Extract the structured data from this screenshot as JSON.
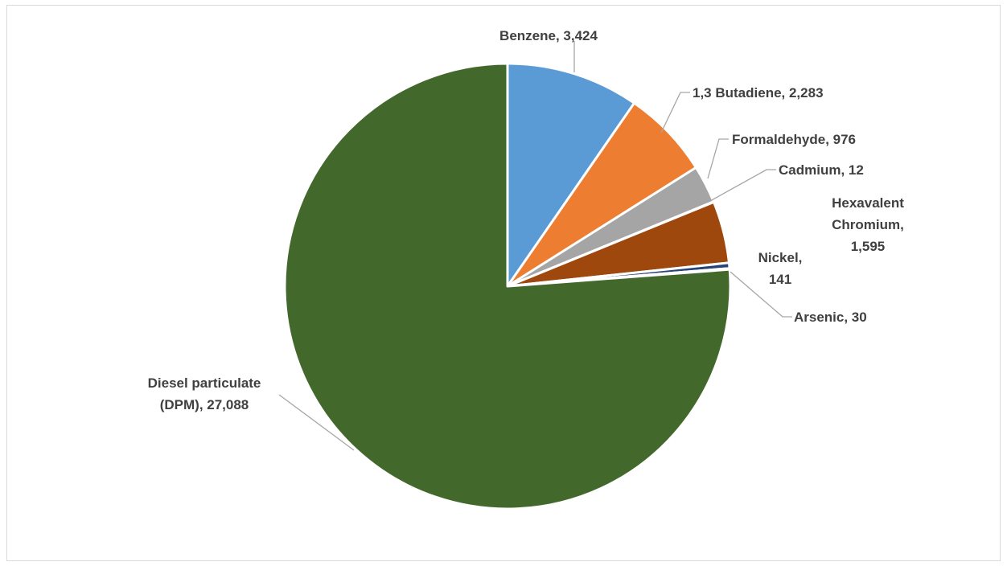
{
  "chart_data": {
    "type": "pie",
    "title": "",
    "start_angle_deg": 0,
    "direction": "clockwise",
    "legend": "none",
    "slices": [
      {
        "label": "Benzene",
        "value": 3424,
        "value_text": "3,424",
        "color": "#5b9bd5",
        "label_lines": [
          "Benzene, 3,424"
        ]
      },
      {
        "label": "1,3 Butadiene",
        "value": 2283,
        "value_text": "2,283",
        "color": "#ed7d31",
        "label_lines": [
          "1,3 Butadiene, 2,283"
        ]
      },
      {
        "label": "Formaldehyde",
        "value": 976,
        "value_text": "976",
        "color": "#a5a5a5",
        "label_lines": [
          "Formaldehyde, 976"
        ]
      },
      {
        "label": "Cadmium",
        "value": 12,
        "value_text": "12",
        "color": "#ffc000",
        "label_lines": [
          "Cadmium, 12"
        ]
      },
      {
        "label": "Hexavalent Chromium",
        "value": 1595,
        "value_text": "1,595",
        "color": "#9e480e",
        "label_lines": [
          "Hexavalent",
          "Chromium,",
          "1,595"
        ]
      },
      {
        "label": "Nickel",
        "value": 141,
        "value_text": "141",
        "color": "#264478",
        "label_lines": [
          "Nickel,",
          "141"
        ]
      },
      {
        "label": "Arsenic",
        "value": 30,
        "value_text": "30",
        "color": "#636363",
        "label_lines": [
          "Arsenic, 30"
        ]
      },
      {
        "label": "Diesel particulate (DPM)",
        "value": 27088,
        "value_text": "27,088",
        "color": "#43682b",
        "label_lines": [
          "Diesel particulate",
          "(DPM), 27,088"
        ]
      }
    ]
  }
}
